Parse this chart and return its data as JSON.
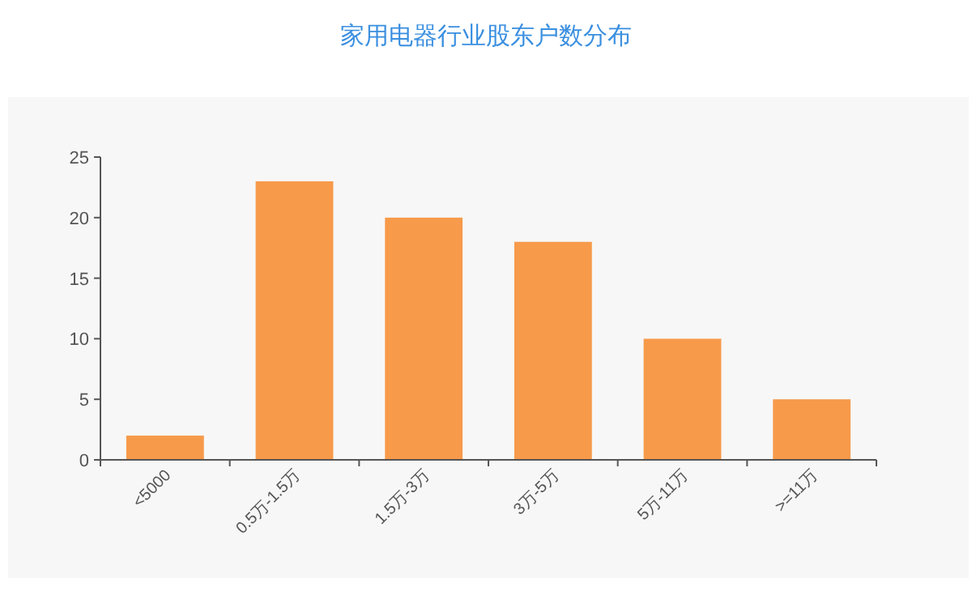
{
  "chart_data": {
    "type": "bar",
    "title": "家用电器行业股东户数分布",
    "categories": [
      "<5000",
      "0.5万-1.5万",
      "1.5万-3万",
      "3万-5万",
      "5万-11万",
      ">=11万"
    ],
    "values": [
      2,
      23,
      20,
      18,
      10,
      5
    ],
    "color": "#f79a4a",
    "ylim": [
      0,
      25
    ],
    "yticks": [
      0,
      5,
      10,
      15,
      20,
      25
    ],
    "grid": false
  }
}
